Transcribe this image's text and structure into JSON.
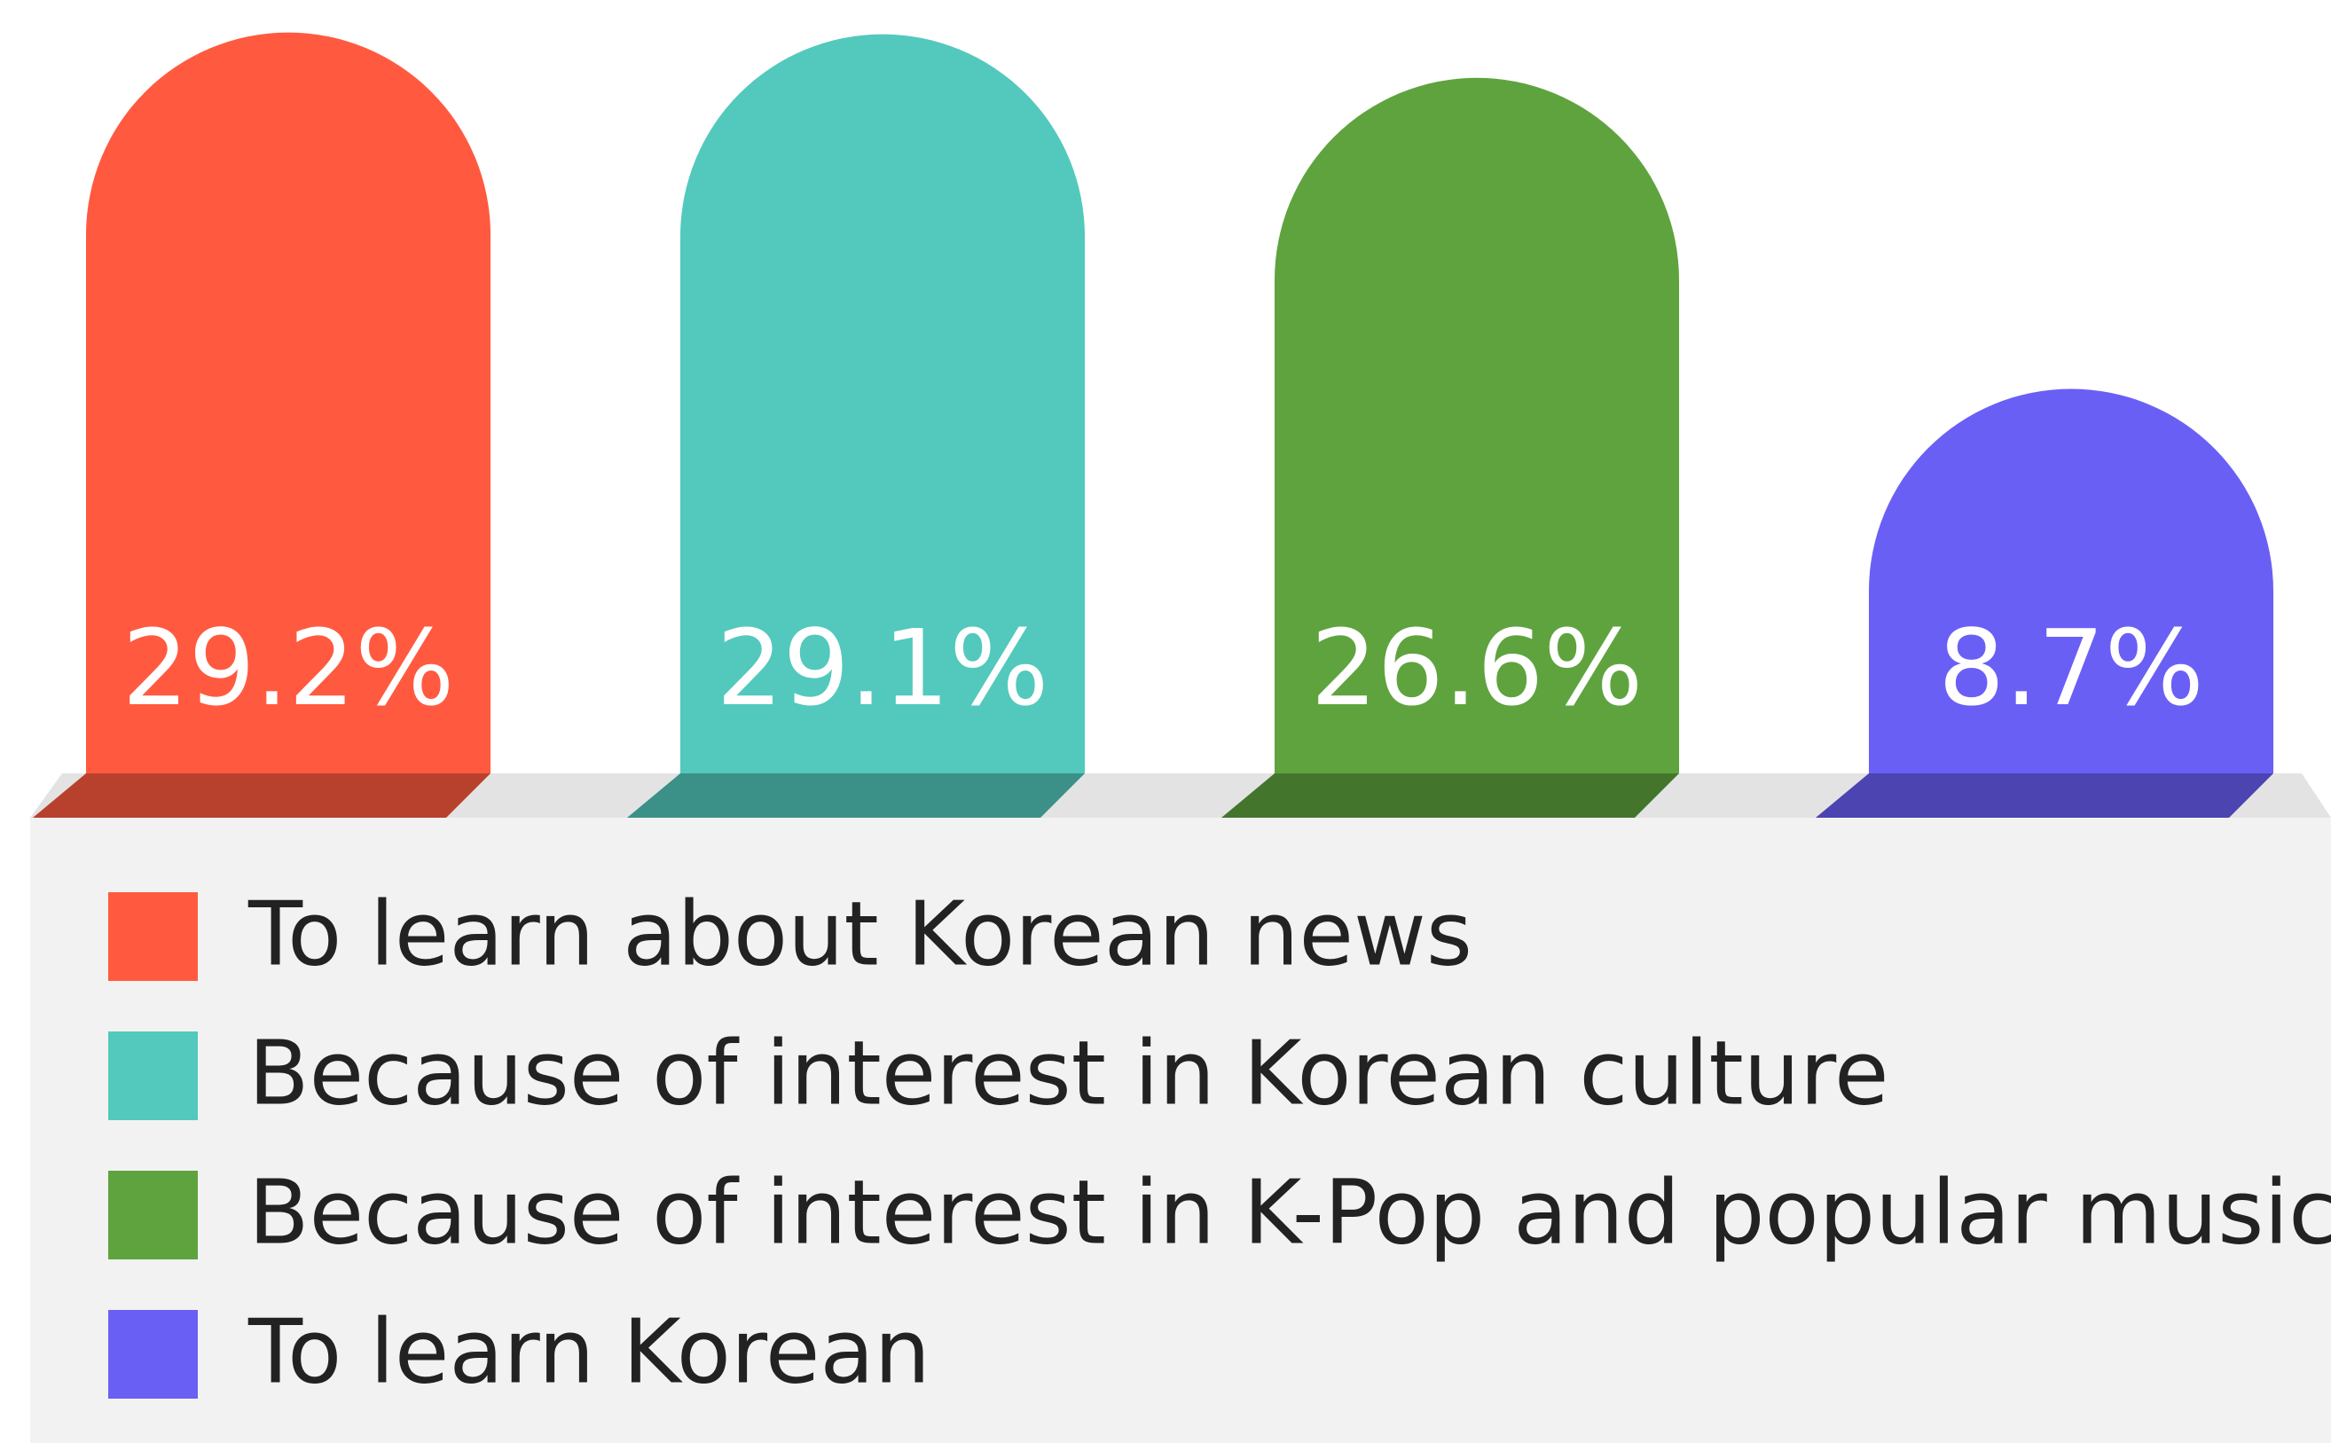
{
  "chart_data": {
    "type": "bar",
    "categories": [
      "To learn about Korean news",
      "Because of interest in Korean culture",
      "Because of interest in K-Pop and popular music",
      "To learn Korean"
    ],
    "values": [
      29.2,
      29.1,
      26.6,
      8.7
    ],
    "value_labels": [
      "29.2%",
      "29.1%",
      "26.6%",
      "8.7%"
    ],
    "colors": [
      "#ff5a40",
      "#52c9bc",
      "#5fa33f",
      "#6a5ff5"
    ]
  }
}
